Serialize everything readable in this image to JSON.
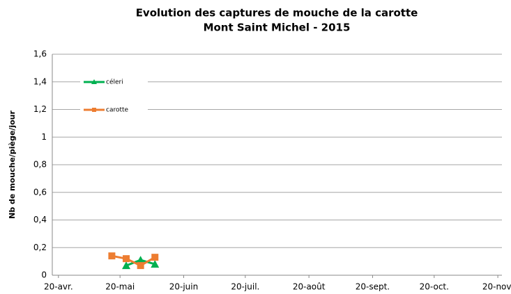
{
  "chart_data": {
    "type": "line",
    "title": "Evolution des captures de mouche de la carotte",
    "subtitle": "Mont Saint Michel - 2015",
    "y_label": "Nb de mouche/piège/jour",
    "x": [
      136,
      143,
      150,
      157
    ],
    "series": [
      {
        "name": "céleri",
        "color": "#00b050",
        "marker": "triangle",
        "values": [
          null,
          0.07,
          0.11,
          0.08
        ]
      },
      {
        "name": "carotte",
        "color": "#ed7d31",
        "marker": "square",
        "values": [
          0.14,
          0.12,
          0.07,
          0.13
        ]
      }
    ],
    "xlim": [
      107,
      326
    ],
    "xticks": [
      {
        "value": 110,
        "label": "20-avr."
      },
      {
        "value": 140,
        "label": "20-mai"
      },
      {
        "value": 171,
        "label": "20-juin"
      },
      {
        "value": 201,
        "label": "20-juil."
      },
      {
        "value": 232,
        "label": "20-août"
      },
      {
        "value": 263,
        "label": "20-sept."
      },
      {
        "value": 293,
        "label": "20-oct."
      },
      {
        "value": 324,
        "label": "20-nov."
      }
    ],
    "ylim": [
      0,
      1.6
    ],
    "yticks": [
      0,
      {
        "value": 0.2,
        "label": "0,2"
      },
      {
        "value": 0.4,
        "label": "0,4"
      },
      {
        "value": 0.6,
        "label": "0,6"
      },
      {
        "value": 0.8,
        "label": "0,8"
      },
      {
        "value": 1,
        "label": "1"
      },
      {
        "value": 1.2,
        "label": "1,2"
      },
      {
        "value": 1.4,
        "label": "1,4"
      },
      {
        "value": 1.6,
        "label": "1,6"
      }
    ],
    "grid": true,
    "legend": "upper left"
  }
}
